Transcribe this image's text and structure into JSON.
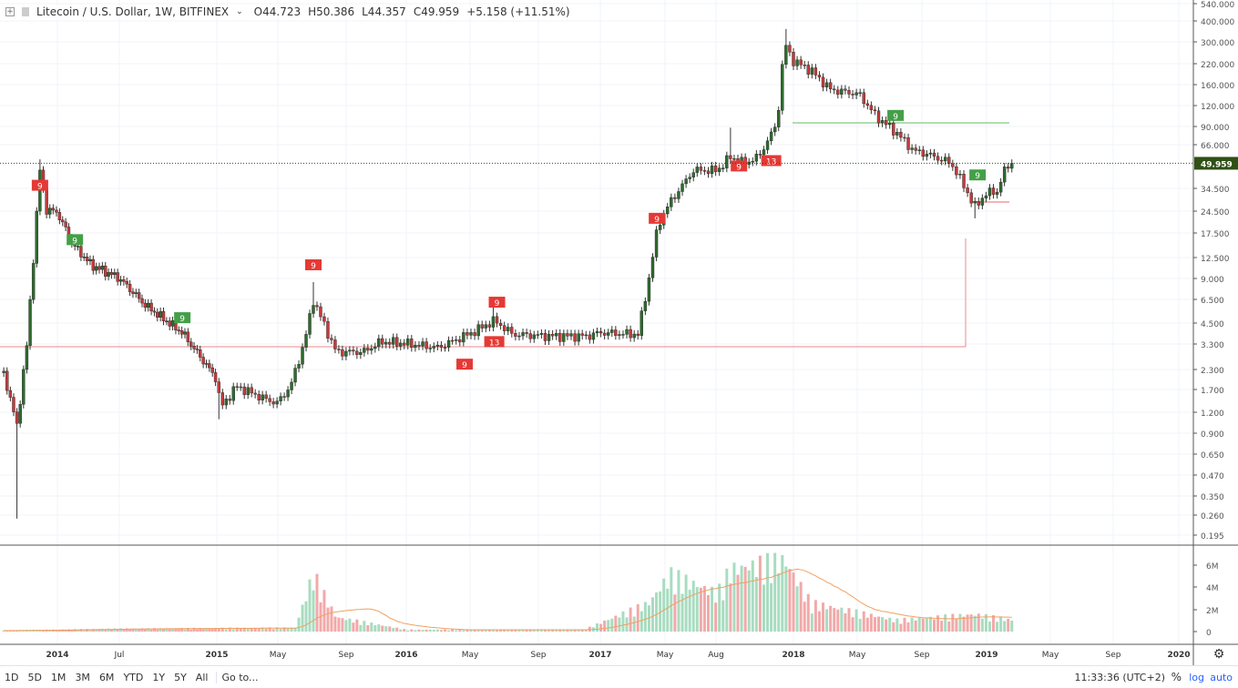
{
  "header": {
    "symbol": "Litecoin / U.S. Dollar, 1W, BITFINEX",
    "open": "O44.723",
    "high": "H50.386",
    "low": "L44.357",
    "close": "C49.959",
    "change": "+5.158 (+11.51%)"
  },
  "bottom": {
    "ranges": [
      "1D",
      "5D",
      "1M",
      "3M",
      "6M",
      "YTD",
      "1Y",
      "5Y",
      "All"
    ],
    "goto": "Go to...",
    "clock": "11:33:36 (UTC+2)",
    "percent": "%",
    "log": "log",
    "auto": "auto"
  },
  "colors": {
    "up": "#2e6b2e",
    "down": "#c43b3b",
    "price_tag": "#2f5016",
    "vol_up": "#a8dcc0",
    "vol_down": "#f2a9a9",
    "vol_ma": "#f0a060"
  },
  "chart_data": {
    "type": "candlestick",
    "scale": "log",
    "grid": true,
    "last_price": "49.959",
    "y_ticks": [
      "540.000",
      "400.000",
      "300.000",
      "220.000",
      "160.000",
      "120.000",
      "90.000",
      "66.000",
      "34.500",
      "24.500",
      "17.500",
      "12.500",
      "9.000",
      "6.500",
      "4.500",
      "3.300",
      "2.300",
      "1.700",
      "1.200",
      "0.900",
      "0.650",
      "0.470",
      "0.350",
      "0.260",
      "0.195"
    ],
    "x_ticks": [
      "2014",
      "Jul",
      "2015",
      "May",
      "Sep",
      "2016",
      "May",
      "Sep",
      "2017",
      "May",
      "Aug",
      "2018",
      "May",
      "Sep",
      "2019",
      "May",
      "Sep",
      "2020"
    ],
    "volume_ticks": [
      "6M",
      "4M",
      "2M",
      "0"
    ],
    "price_path": [
      [
        "2013-09-09",
        2.2
      ],
      [
        "2013-10-07",
        1.0,
        0.25
      ],
      [
        "2013-10-28",
        3.3
      ],
      [
        "2013-11-25",
        45,
        53
      ],
      [
        "2013-12-09",
        25
      ],
      [
        "2014-01-01",
        24
      ],
      [
        "2014-02-05",
        15
      ],
      [
        "2014-03-19",
        11
      ],
      [
        "2014-05-23",
        9
      ],
      [
        "2014-07-22",
        6
      ],
      [
        "2014-10-14",
        4
      ],
      [
        "2015-01-01",
        2.0
      ],
      [
        "2015-01-08",
        1.3,
        1.1
      ],
      [
        "2015-02-08",
        1.8
      ],
      [
        "2015-04-01",
        1.5
      ],
      [
        "2015-04-27",
        1.4
      ],
      [
        "2015-05-23",
        1.8
      ],
      [
        "2015-06-19",
        3.5
      ],
      [
        "2015-07-06",
        6.5,
        8.5
      ],
      [
        "2015-08-19",
        3
      ],
      [
        "2015-10-10",
        3.0
      ],
      [
        "2015-11-14",
        3.5
      ],
      [
        "2016-01-01",
        3.4
      ],
      [
        "2016-03-01",
        3.2
      ],
      [
        "2016-05-04",
        4
      ],
      [
        "2016-06-15",
        4.8,
        6
      ],
      [
        "2016-07-20",
        3.9
      ],
      [
        "2016-09-28",
        3.8
      ],
      [
        "2016-12-07",
        3.8
      ],
      [
        "2017-01-01",
        4
      ],
      [
        "2017-03-13",
        3.9
      ],
      [
        "2017-04-03",
        9
      ],
      [
        "2017-04-20",
        20
      ],
      [
        "2017-05-13",
        28
      ],
      [
        "2017-06-26",
        45
      ],
      [
        "2017-08-10",
        45
      ],
      [
        "2017-09-04",
        55,
        85
      ],
      [
        "2017-09-30",
        50
      ],
      [
        "2017-10-27",
        55
      ],
      [
        "2017-12-01",
        90
      ],
      [
        "2017-12-15",
        300,
        370
      ],
      [
        "2018-01-01",
        230
      ],
      [
        "2018-02-03",
        200
      ],
      [
        "2018-03-12",
        150
      ],
      [
        "2018-05-05",
        140
      ],
      [
        "2018-06-07",
        100
      ],
      [
        "2018-07-13",
        80
      ],
      [
        "2018-08-17",
        60
      ],
      [
        "2018-09-07",
        58
      ],
      [
        "2018-10-26",
        50
      ],
      [
        "2018-11-21",
        35
      ],
      [
        "2018-12-09",
        26,
        22
      ],
      [
        "2019-01-01",
        32
      ],
      [
        "2019-01-22",
        33
      ],
      [
        "2019-02-04",
        45
      ],
      [
        "2019-02-18",
        49.959
      ]
    ],
    "volume_millions": [
      [
        "2013-09-09",
        0.1
      ],
      [
        "2014-01-01",
        0.2
      ],
      [
        "2014-06-01",
        0.3
      ],
      [
        "2015-06-01",
        0.4
      ],
      [
        "2015-07-06",
        6
      ],
      [
        "2015-08-19",
        1.5
      ],
      [
        "2016-01-01",
        0.2
      ],
      [
        "2016-12-01",
        0.2
      ],
      [
        "2017-04-03",
        3
      ],
      [
        "2017-05-13",
        6
      ],
      [
        "2017-08-10",
        4
      ],
      [
        "2017-09-04",
        6.5
      ],
      [
        "2017-12-15",
        7.5
      ],
      [
        "2018-02-03",
        3
      ],
      [
        "2018-07-13",
        1.2
      ],
      [
        "2018-12-09",
        1.8
      ],
      [
        "2019-02-18",
        1.2
      ]
    ],
    "signals": [
      {
        "label": "9",
        "type": "sell",
        "date": "2013-11-25",
        "price": 36
      },
      {
        "label": "9",
        "type": "buy",
        "date": "2014-02-10",
        "price": 16
      },
      {
        "label": "9",
        "type": "buy",
        "date": "2014-10-14",
        "price": 5
      },
      {
        "label": "9",
        "type": "sell",
        "date": "2015-07-06",
        "price": 11
      },
      {
        "label": "9",
        "type": "sell",
        "date": "2016-04-20",
        "price": 2.5
      },
      {
        "label": "13",
        "type": "sell",
        "date": "2016-06-15",
        "price": 3.5
      },
      {
        "label": "9",
        "type": "sell",
        "date": "2016-06-20",
        "price": 6.3
      },
      {
        "label": "9",
        "type": "sell",
        "date": "2017-04-18",
        "price": 22
      },
      {
        "label": "9",
        "type": "sell",
        "date": "2017-09-20",
        "price": 48
      },
      {
        "label": "13",
        "type": "sell",
        "date": "2017-11-20",
        "price": 52
      },
      {
        "label": "9",
        "type": "buy",
        "date": "2018-07-13",
        "price": 102
      },
      {
        "label": "9",
        "type": "buy",
        "date": "2018-12-15",
        "price": 42
      }
    ]
  }
}
